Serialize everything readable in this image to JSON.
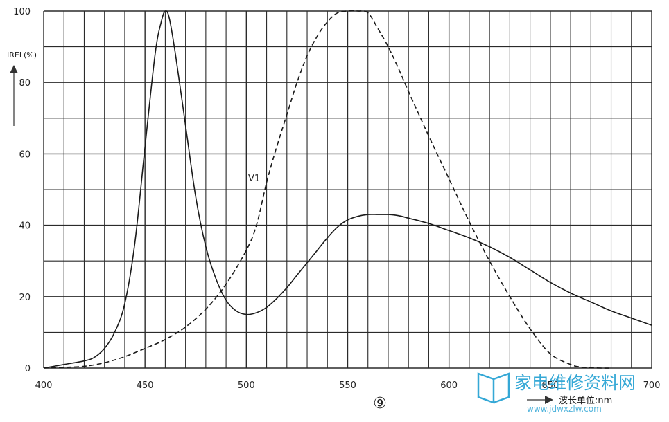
{
  "chart_data": {
    "type": "line",
    "ylabel": "IREL(%)",
    "xlabel": "波长单位:nm",
    "figure_number": "⑨",
    "xlim": [
      400,
      700
    ],
    "ylim": [
      0,
      100
    ],
    "x_ticks": [
      "400",
      "450",
      "500",
      "550",
      "600",
      "650",
      "700"
    ],
    "y_ticks": [
      "0",
      "20",
      "40",
      "60",
      "80",
      "100"
    ],
    "grid": true,
    "series": [
      {
        "style": "solid",
        "x": [
          400,
          410,
          420,
          425,
          430,
          435,
          440,
          445,
          450,
          455,
          458,
          460,
          462,
          465,
          470,
          475,
          480,
          485,
          490,
          495,
          500,
          505,
          510,
          515,
          520,
          525,
          530,
          535,
          540,
          545,
          550,
          555,
          560,
          565,
          570,
          575,
          580,
          590,
          600,
          610,
          620,
          630,
          640,
          650,
          660,
          670,
          680,
          690,
          700
        ],
        "values": [
          0,
          1,
          2,
          3,
          5.5,
          10,
          18,
          35,
          62,
          88,
          97,
          100,
          98,
          88,
          68,
          48,
          34,
          25,
          19,
          16,
          15,
          15.5,
          17,
          19.5,
          22.5,
          26,
          29.5,
          33,
          36.5,
          39.5,
          41.5,
          42.5,
          43,
          43,
          43,
          42.7,
          42,
          40.5,
          38.5,
          36.5,
          34,
          31,
          27.5,
          24,
          21,
          18.5,
          16,
          14,
          12
        ]
      },
      {
        "name": "V1",
        "style": "dashed",
        "x": [
          400,
          410,
          420,
          430,
          440,
          450,
          460,
          470,
          480,
          490,
          500,
          505,
          510,
          515,
          520,
          525,
          530,
          535,
          540,
          545,
          550,
          555,
          560,
          565,
          570,
          575,
          580,
          590,
          600,
          610,
          620,
          630,
          640,
          650,
          660,
          665,
          670,
          675,
          680
        ],
        "values": [
          0,
          0.2,
          0.5,
          1.5,
          3.2,
          5.5,
          8,
          11.5,
          16.5,
          23.5,
          33,
          40,
          52,
          62,
          71,
          80,
          87.5,
          93,
          97,
          99.5,
          100,
          100,
          99.5,
          95,
          90,
          84,
          77.5,
          65,
          53,
          41,
          30,
          20,
          11,
          4,
          1,
          0.3,
          0.1,
          0,
          0
        ]
      }
    ]
  },
  "watermark": {
    "text": "家电维修资料网",
    "subtext": "www.jdwxzlw.com",
    "color": "#35a8d6"
  }
}
